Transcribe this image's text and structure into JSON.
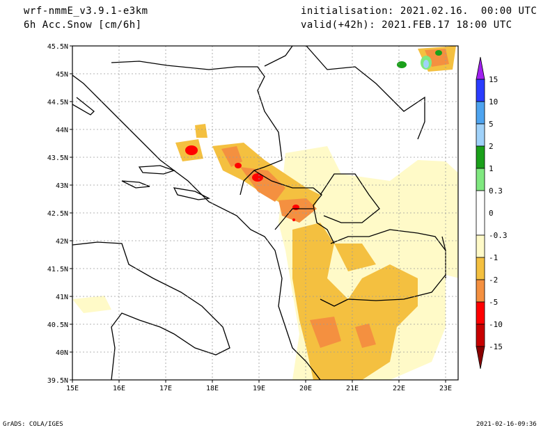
{
  "header": {
    "model": "wrf-nmmE_v3.9.1-e3km",
    "field": "6h Acc.Snow [cm/6h]",
    "init": "initialisation: 2021.02.16.  00:00 UTC",
    "valid": "valid(+42h): 2021.FEB.17 18:00 UTC"
  },
  "map": {
    "lon_labels": [
      "15E",
      "16E",
      "17E",
      "18E",
      "19E",
      "20E",
      "21E",
      "22E",
      "23E"
    ],
    "lat_labels": [
      "45.5N",
      "45N",
      "44.5N",
      "44N",
      "43.5N",
      "43N",
      "42.5N",
      "42N",
      "41.5N",
      "41N",
      "40.5N",
      "40N",
      "39.5N"
    ]
  },
  "legend": {
    "labels": [
      "15",
      "10",
      "5",
      "2",
      "1",
      "0.3",
      "0",
      "-0.3",
      "-1",
      "-2",
      "-5",
      "-10",
      "-15"
    ],
    "colors": [
      "#a020f0",
      "#2a3cff",
      "#4ea4f0",
      "#a0d2fa",
      "#1aa01a",
      "#80e880",
      "#ffffff",
      "#fffac8",
      "#f4c040",
      "#f49040",
      "#ff0000",
      "#c80000",
      "#8a0000"
    ]
  },
  "footer": {
    "left": "GrADS: COLA/IGES",
    "right": "2021-02-16-09:36"
  }
}
